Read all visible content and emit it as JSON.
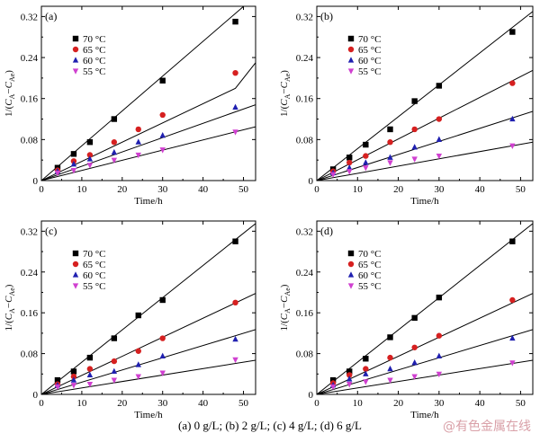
{
  "caption": "(a) 0 g/L; (b) 2 g/L; (c) 4 g/L; (d) 6 g/L",
  "watermark": "@有色金属在线",
  "series_colors": [
    "#000000",
    "#d62020",
    "#2020b0",
    "#d040d0"
  ],
  "series_markers": [
    "square",
    "circle",
    "triangle",
    "triangle-down"
  ],
  "chart_data": [
    {
      "type": "scatter",
      "panel_label": "(a)",
      "xlabel": "Time/h",
      "ylabel": "1/(C_A−C_Ae)",
      "xlim": [
        0,
        53
      ],
      "ylim": [
        0,
        0.34
      ],
      "xticks": [
        0,
        10,
        20,
        30,
        40,
        50
      ],
      "yticks": [
        0,
        0.08,
        0.16,
        0.24,
        0.32
      ],
      "ytick_labels": [
        "0",
        "0.08",
        "0.16",
        "0.24",
        "0.32"
      ],
      "legend_position": "top-left",
      "series": [
        {
          "name": "70 °C",
          "x": [
            4,
            8,
            12,
            18,
            30,
            48
          ],
          "y": [
            0.025,
            0.052,
            0.075,
            0.12,
            0.195,
            0.31
          ],
          "fit": [
            [
              0,
              0
            ],
            [
              53,
              0.36
            ]
          ]
        },
        {
          "name": "65 °C",
          "x": [
            4,
            8,
            12,
            18,
            24,
            30,
            48
          ],
          "y": [
            0.02,
            0.038,
            0.05,
            0.075,
            0.1,
            0.128,
            0.21
          ],
          "fit": [
            [
              0,
              0
            ],
            [
              48,
              0.18
            ],
            [
              53,
              0.23
            ]
          ]
        },
        {
          "name": "60 °C",
          "x": [
            4,
            8,
            12,
            18,
            24,
            30,
            48
          ],
          "y": [
            0.018,
            0.032,
            0.042,
            0.055,
            0.075,
            0.088,
            0.143
          ],
          "fit": [
            [
              0,
              0
            ],
            [
              53,
              0.148
            ]
          ]
        },
        {
          "name": "55 °C",
          "x": [
            4,
            8,
            12,
            18,
            24,
            30,
            48
          ],
          "y": [
            0.015,
            0.02,
            0.03,
            0.04,
            0.05,
            0.06,
            0.095
          ],
          "fit": [
            [
              0,
              0
            ],
            [
              53,
              0.105
            ]
          ]
        }
      ]
    },
    {
      "type": "scatter",
      "panel_label": "(b)",
      "xlabel": "Time/h",
      "ylabel": "1/(C_A−C_Ae)",
      "xlim": [
        0,
        53
      ],
      "ylim": [
        0,
        0.34
      ],
      "xticks": [
        0,
        10,
        20,
        30,
        40,
        50
      ],
      "yticks": [
        0,
        0.08,
        0.16,
        0.24,
        0.32
      ],
      "ytick_labels": [
        "0",
        "0.08",
        "0.16",
        "0.24",
        "0.32"
      ],
      "legend_position": "top-left",
      "series": [
        {
          "name": "70 °C",
          "x": [
            4,
            8,
            12,
            18,
            24,
            30,
            48
          ],
          "y": [
            0.022,
            0.045,
            0.07,
            0.1,
            0.155,
            0.185,
            0.29
          ],
          "fit": [
            [
              0,
              0
            ],
            [
              53,
              0.33
            ]
          ]
        },
        {
          "name": "65 °C",
          "x": [
            4,
            8,
            12,
            18,
            24,
            30,
            48
          ],
          "y": [
            0.018,
            0.035,
            0.048,
            0.075,
            0.1,
            0.12,
            0.19
          ],
          "fit": [
            [
              0,
              0
            ],
            [
              53,
              0.215
            ]
          ]
        },
        {
          "name": "60 °C",
          "x": [
            4,
            8,
            12,
            18,
            24,
            30,
            48
          ],
          "y": [
            0.015,
            0.025,
            0.035,
            0.045,
            0.065,
            0.08,
            0.12
          ],
          "fit": [
            [
              0,
              0
            ],
            [
              53,
              0.135
            ]
          ]
        },
        {
          "name": "55 °C",
          "x": [
            4,
            8,
            12,
            18,
            24,
            30,
            48
          ],
          "y": [
            0.012,
            0.018,
            0.025,
            0.035,
            0.042,
            0.048,
            0.068
          ],
          "fit": [
            [
              0,
              0
            ],
            [
              53,
              0.075
            ]
          ]
        }
      ]
    },
    {
      "type": "scatter",
      "panel_label": "(c)",
      "xlabel": "Time/h",
      "ylabel": "1/(C_A−C_Ae)",
      "xlim": [
        0,
        53
      ],
      "ylim": [
        0,
        0.34
      ],
      "xticks": [
        0,
        10,
        20,
        30,
        40,
        50
      ],
      "yticks": [
        0,
        0.08,
        0.16,
        0.24,
        0.32
      ],
      "ytick_labels": [
        "0",
        "0.08",
        "0.16",
        "0.24",
        "0.32"
      ],
      "legend_position": "top-left",
      "series": [
        {
          "name": "70 °C",
          "x": [
            4,
            8,
            12,
            18,
            24,
            30,
            48
          ],
          "y": [
            0.028,
            0.045,
            0.072,
            0.11,
            0.155,
            0.185,
            0.3
          ],
          "fit": [
            [
              0,
              0
            ],
            [
              53,
              0.335
            ]
          ]
        },
        {
          "name": "65 °C",
          "x": [
            4,
            8,
            12,
            18,
            24,
            30,
            48
          ],
          "y": [
            0.02,
            0.035,
            0.05,
            0.065,
            0.085,
            0.11,
            0.18
          ],
          "fit": [
            [
              0,
              0
            ],
            [
              53,
              0.198
            ]
          ]
        },
        {
          "name": "60 °C",
          "x": [
            4,
            8,
            12,
            18,
            24,
            30,
            48
          ],
          "y": [
            0.018,
            0.028,
            0.038,
            0.045,
            0.058,
            0.075,
            0.108
          ],
          "fit": [
            [
              0,
              0
            ],
            [
              53,
              0.127
            ]
          ]
        },
        {
          "name": "55 °C",
          "x": [
            4,
            8,
            12,
            18,
            24,
            30,
            48
          ],
          "y": [
            0.015,
            0.018,
            0.02,
            0.028,
            0.035,
            0.042,
            0.068
          ],
          "fit": [
            [
              0,
              0
            ],
            [
              53,
              0.067
            ]
          ]
        }
      ]
    },
    {
      "type": "scatter",
      "panel_label": "(d)",
      "xlabel": "Time/h",
      "ylabel": "1/(C_A−C_Ae)",
      "xlim": [
        0,
        53
      ],
      "ylim": [
        0,
        0.34
      ],
      "xticks": [
        0,
        10,
        20,
        30,
        40,
        50
      ],
      "yticks": [
        0,
        0.08,
        0.16,
        0.24,
        0.32
      ],
      "ytick_labels": [
        "0",
        "0.08",
        "0.16",
        "0.24",
        "0.32"
      ],
      "legend_position": "top-left",
      "series": [
        {
          "name": "70 °C",
          "x": [
            4,
            8,
            12,
            18,
            24,
            30,
            48
          ],
          "y": [
            0.028,
            0.045,
            0.07,
            0.112,
            0.15,
            0.19,
            0.3
          ],
          "fit": [
            [
              0,
              0
            ],
            [
              53,
              0.335
            ]
          ]
        },
        {
          "name": "65 °C",
          "x": [
            4,
            8,
            12,
            18,
            24,
            30,
            48
          ],
          "y": [
            0.022,
            0.038,
            0.05,
            0.072,
            0.092,
            0.115,
            0.185
          ],
          "fit": [
            [
              0,
              0
            ],
            [
              53,
              0.198
            ]
          ]
        },
        {
          "name": "60 °C",
          "x": [
            4,
            8,
            12,
            18,
            24,
            30,
            48
          ],
          "y": [
            0.018,
            0.03,
            0.04,
            0.05,
            0.062,
            0.075,
            0.11
          ],
          "fit": [
            [
              0,
              0
            ],
            [
              53,
              0.127
            ]
          ]
        },
        {
          "name": "55 °C",
          "x": [
            4,
            8,
            12,
            18,
            24,
            30,
            48
          ],
          "y": [
            0.015,
            0.02,
            0.025,
            0.028,
            0.035,
            0.04,
            0.062
          ],
          "fit": [
            [
              0,
              0
            ],
            [
              53,
              0.067
            ]
          ]
        }
      ]
    }
  ]
}
